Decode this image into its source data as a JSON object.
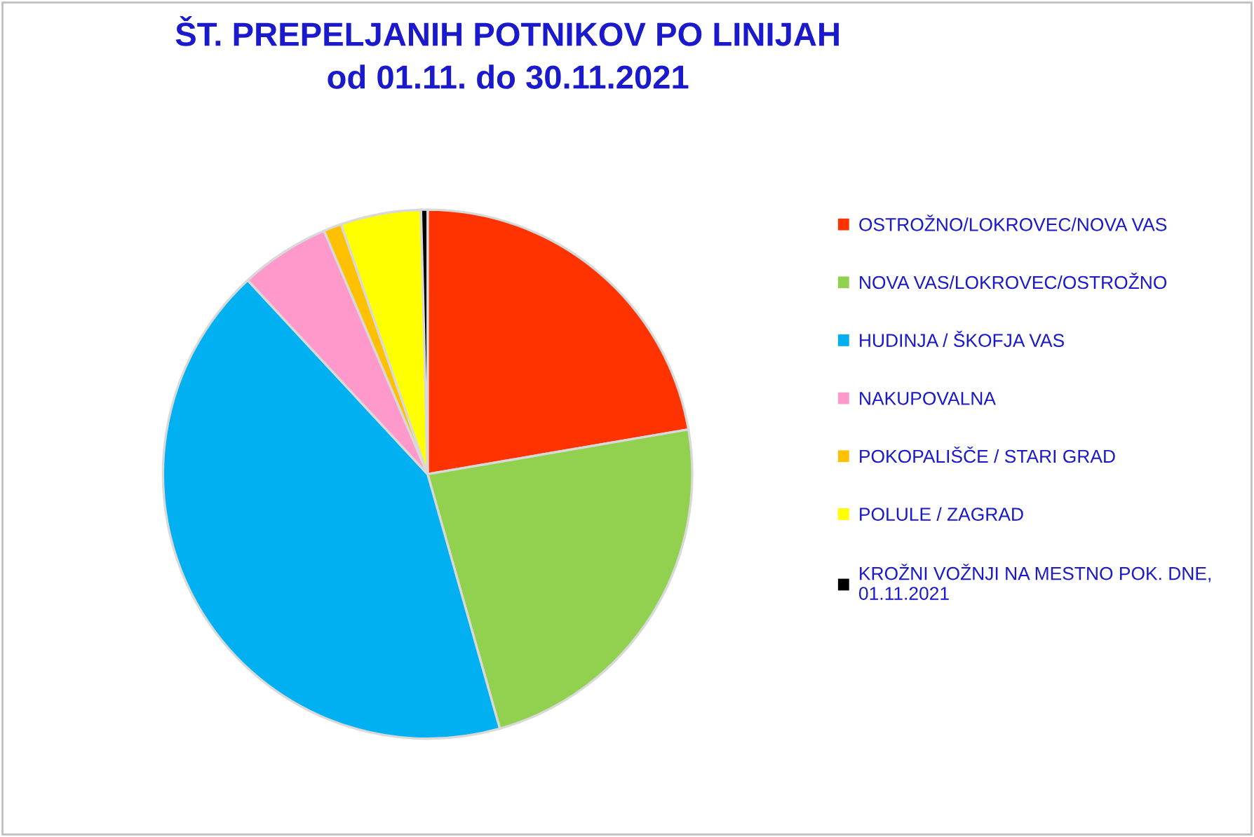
{
  "chart_data": {
    "type": "pie",
    "title": "ŠT. PREPELJANIH POTNIKOV PO LINIJAH\nod 01.11. do 30.11.2021",
    "categories": [
      "OSTROŽNO/LOKROVEC/NOVA VAS",
      "NOVA VAS/LOKROVEC/OSTROŽNO",
      "HUDINJA / ŠKOFJA VAS",
      "NAKUPOVALNA",
      "POKOPALIŠČE / STARI GRAD",
      "POLULE / ZAGRAD",
      "KROŽNI VOŽNJI NA MESTNO POK. DNE,\n01.11.2021"
    ],
    "values": [
      22.3,
      23.3,
      42.5,
      5.5,
      1.1,
      4.9,
      0.4
    ],
    "colors": [
      "#ff3300",
      "#92d050",
      "#00b0f0",
      "#ff99cc",
      "#ffc000",
      "#ffff00",
      "#000000"
    ],
    "legend": "right"
  }
}
